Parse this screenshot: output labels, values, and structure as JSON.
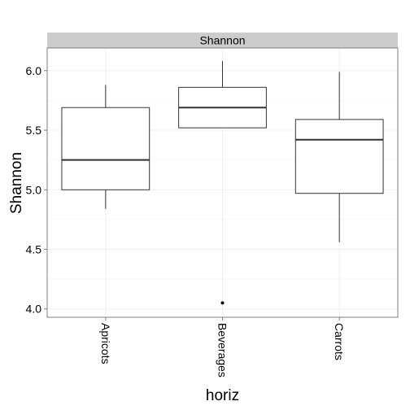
{
  "chart_data": {
    "type": "boxplot",
    "facet_label": "Shannon",
    "xlabel": "horiz",
    "ylabel": "Shannon",
    "ylim": [
      3.93,
      6.19
    ],
    "yticks": [
      4.0,
      4.5,
      5.0,
      5.5,
      6.0
    ],
    "ytick_labels": [
      "4.0",
      "4.5",
      "5.0",
      "5.5",
      "6.0"
    ],
    "grid": true,
    "categories": [
      "Apricots",
      "Beverages",
      "Carrots"
    ],
    "boxes": [
      {
        "label": "Apricots",
        "whisker_low": 4.84,
        "q1": 5.0,
        "median": 5.25,
        "q3": 5.69,
        "whisker_high": 5.88,
        "outliers": []
      },
      {
        "label": "Beverages",
        "whisker_low": 5.52,
        "q1": 5.52,
        "median": 5.69,
        "q3": 5.86,
        "whisker_high": 6.08,
        "outliers": [
          4.05
        ]
      },
      {
        "label": "Carrots",
        "whisker_low": 4.56,
        "q1": 4.97,
        "median": 5.42,
        "q3": 5.59,
        "whisker_high": 5.99,
        "outliers": []
      }
    ],
    "colors": {
      "panel_border": "#7f7f7f",
      "strip_fill": "#cccccc",
      "grid_major": "#f0f0f0",
      "grid_minor": "#f8f8f8",
      "box_line": "#333333"
    }
  }
}
